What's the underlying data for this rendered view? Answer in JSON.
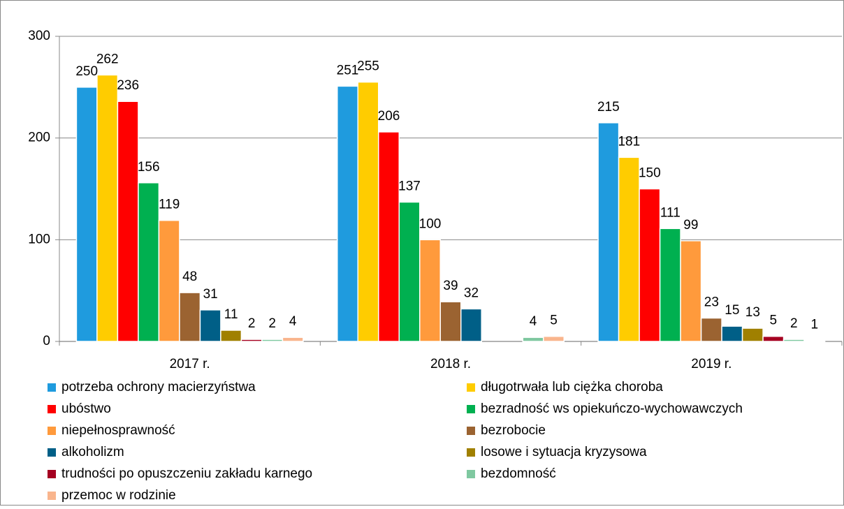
{
  "chart_data": {
    "type": "bar",
    "categories": [
      "2017 r.",
      "2018 r.",
      "2019 r."
    ],
    "series": [
      {
        "name": "potrzeba ochrony macierzyństwa",
        "color": "#1f9bde",
        "values": [
          250,
          251,
          215
        ]
      },
      {
        "name": "długotrwała lub ciężka choroba",
        "color": "#ffcc00",
        "values": [
          262,
          255,
          181
        ]
      },
      {
        "name": "ubóstwo",
        "color": "#ff0000",
        "values": [
          236,
          206,
          150
        ]
      },
      {
        "name": "bezradność ws opiekuńczo-wychowawczych",
        "color": "#00b050",
        "values": [
          156,
          137,
          111
        ]
      },
      {
        "name": "niepełnosprawność",
        "color": "#ff9a3c",
        "values": [
          119,
          100,
          99
        ]
      },
      {
        "name": "bezrobocie",
        "color": "#9b6331",
        "values": [
          48,
          39,
          23
        ]
      },
      {
        "name": "alkoholizm",
        "color": "#005f87",
        "values": [
          31,
          32,
          15
        ]
      },
      {
        "name": "losowe i sytuacja kryzysowa",
        "color": "#a08000",
        "values": [
          11,
          null,
          13
        ]
      },
      {
        "name": "trudności po opuszczeniu zakładu karnego",
        "color": "#a50021",
        "values": [
          2,
          null,
          5
        ]
      },
      {
        "name": "bezdomność",
        "color": "#7fc8a0",
        "values": [
          2,
          4,
          2
        ]
      },
      {
        "name": "przemoc w rodzinie",
        "color": "#f9b58d",
        "values": [
          4,
          5,
          1
        ]
      }
    ],
    "ylim": [
      0,
      300
    ],
    "yticks": [
      0,
      100,
      200,
      300
    ],
    "grid": true,
    "legend": "bottom"
  }
}
